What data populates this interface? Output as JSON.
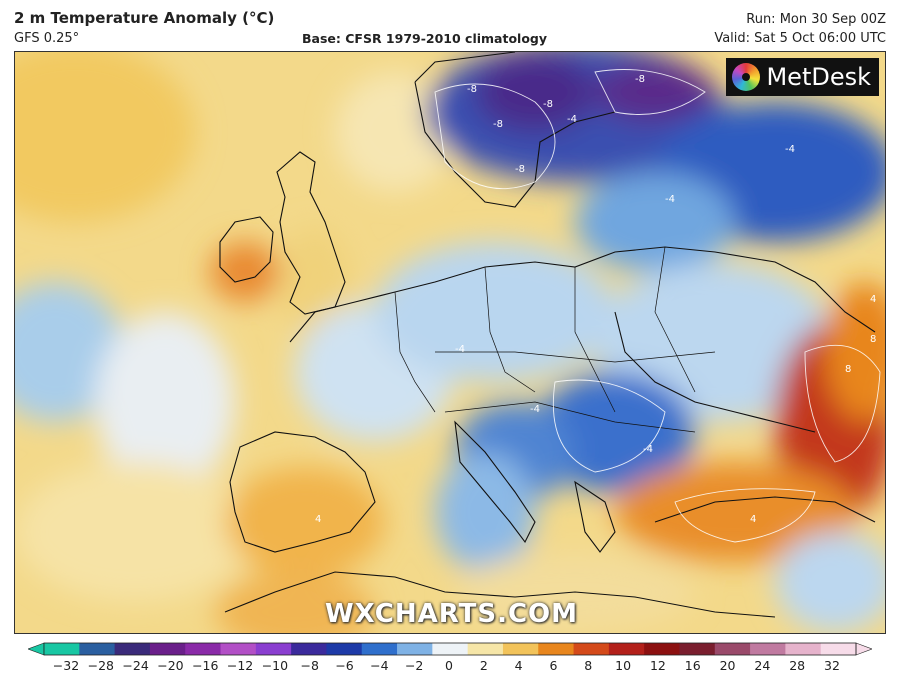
{
  "header": {
    "title": "2 m Temperature Anomaly (°C)",
    "model": "GFS 0.25°",
    "base": "Base: CFSR 1979-2010 climatology",
    "run": "Run: Mon 30 Sep 00Z",
    "valid": "Valid: Sat 5 Oct 06:00 UTC"
  },
  "logo": {
    "text": "MetDesk"
  },
  "watermark": "WXCHARTS.COM",
  "colorbar": {
    "ticks": [
      "−32",
      "−28",
      "−24",
      "−20",
      "−16",
      "−12",
      "−10",
      "−8",
      "−6",
      "−4",
      "−2",
      "0",
      "2",
      "4",
      "6",
      "8",
      "10",
      "12",
      "16",
      "20",
      "24",
      "28",
      "32"
    ],
    "colors": [
      "#18c7a3",
      "#2a5fa0",
      "#3a2a7a",
      "#6a1f8a",
      "#8a2aa8",
      "#b24fc6",
      "#8a3ed0",
      "#3b2a9c",
      "#1d3aa8",
      "#2f6fcc",
      "#7fb2e5",
      "#eef3f7",
      "#f6e6a8",
      "#f2c35a",
      "#e8861d",
      "#d44a1a",
      "#b3201a",
      "#8c1010",
      "#7a1e2e",
      "#9a4a6a",
      "#c07aa0",
      "#e6b3cc",
      "#f7dce9"
    ]
  },
  "map": {
    "contour_labels": [
      "-8",
      "-8",
      "-8",
      "-8",
      "-8",
      "-4",
      "-4",
      "-4",
      "-4",
      "4",
      "4",
      "4",
      "8",
      "8",
      "-4",
      "-4"
    ]
  }
}
